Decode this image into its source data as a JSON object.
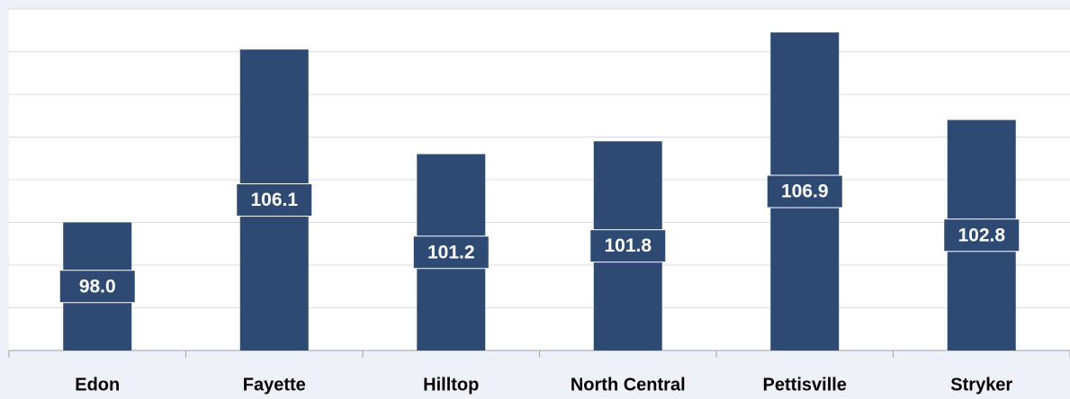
{
  "chart_data": {
    "type": "bar",
    "categories": [
      "Edon",
      "Fayette",
      "Hilltop",
      "North Central",
      "Pettisville",
      "Stryker"
    ],
    "values": [
      98.0,
      106.1,
      101.2,
      101.8,
      106.9,
      102.8
    ],
    "value_labels": [
      "98.0",
      "106.1",
      "101.2",
      "101.8",
      "106.9",
      "102.8"
    ],
    "color": "#2e4a72",
    "ylim": [
      92,
      108
    ],
    "yticks": [
      92,
      94,
      96,
      98,
      100,
      102,
      104,
      106,
      108
    ],
    "grid": true
  }
}
